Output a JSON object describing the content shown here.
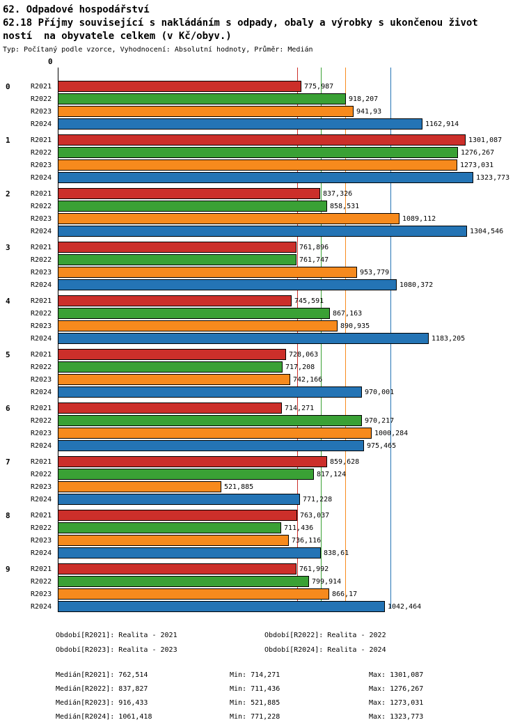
{
  "header": {
    "title": "62. Odpadové hospodářství",
    "subtitle_line1": "62.18 Příjmy související s nakládáním s odpady, obaly a výrobky s ukončenou život",
    "subtitle_line2": "ností  na obyvatele celkem (v Kč/obyv.)",
    "meta": "Typ: Počítaný podle vzorce, Vyhodnocení: Absolutní hodnoty, Průměr: Medián"
  },
  "chart_data": {
    "type": "bar",
    "orientation": "horizontal",
    "title": "62.18 Příjmy související s nakládáním s odpady, obaly a výrobky s ukončenou životností na obyvatele celkem (v Kč/obyv.)",
    "axis_zero_label": "0",
    "xlim": [
      0,
      1480
    ],
    "grid": false,
    "categories": [
      "0",
      "1",
      "2",
      "3",
      "4",
      "5",
      "6",
      "7",
      "8",
      "9"
    ],
    "series": [
      {
        "name": "R2021",
        "color": "#cc2f2a",
        "values": [
          775.987,
          1301.087,
          837.326,
          761.896,
          745.591,
          728.063,
          714.271,
          859.628,
          763.037,
          761.992
        ],
        "labels": [
          "775,987",
          "1301,087",
          "837,326",
          "761,896",
          "745,591",
          "728,063",
          "714,271",
          "859,628",
          "763,037",
          "761,992"
        ],
        "median": 762.514
      },
      {
        "name": "R2022",
        "color": "#3aa135",
        "values": [
          918.207,
          1276.267,
          858.531,
          761.747,
          867.163,
          717.208,
          970.217,
          817.124,
          711.436,
          799.914
        ],
        "labels": [
          "918,207",
          "1276,267",
          "858,531",
          "761,747",
          "867,163",
          "717,208",
          "970,217",
          "817,124",
          "711,436",
          "799,914"
        ],
        "median": 837.827
      },
      {
        "name": "R2023",
        "color": "#f78a1d",
        "values": [
          941.93,
          1273.031,
          1089.112,
          953.779,
          890.935,
          742.166,
          1000.284,
          521.885,
          736.116,
          866.17
        ],
        "labels": [
          "941,93",
          "1273,031",
          "1089,112",
          "953,779",
          "890,935",
          "742,166",
          "1000,284",
          "521,885",
          "736,116",
          "866,17"
        ],
        "median": 916.433
      },
      {
        "name": "R2024",
        "color": "#2474b5",
        "values": [
          1162.914,
          1323.773,
          1304.546,
          1080.372,
          1183.205,
          970.001,
          975.465,
          771.228,
          838.61,
          1042.464
        ],
        "labels": [
          "1162,914",
          "1323,773",
          "1304,546",
          "1080,372",
          "1183,205",
          "970,001",
          "975,465",
          "771,228",
          "838,61",
          "1042,464"
        ],
        "median": 1061.418
      }
    ]
  },
  "legend": {
    "items": [
      {
        "label": "Období[R2021]: Realita - 2021"
      },
      {
        "label": "Období[R2022]: Realita - 2022"
      },
      {
        "label": "Období[R2023]: Realita - 2023"
      },
      {
        "label": "Období[R2024]: Realita - 2024"
      }
    ]
  },
  "stats": {
    "rows": [
      {
        "median": "Medián[R2021]: 762,514",
        "min": "Min: 714,271",
        "max": "Max: 1301,087"
      },
      {
        "median": "Medián[R2022]: 837,827",
        "min": "Min: 711,436",
        "max": "Max: 1276,267"
      },
      {
        "median": "Medián[R2023]: 916,433",
        "min": "Min: 521,885",
        "max": "Max: 1273,031"
      },
      {
        "median": "Medián[R2024]: 1061,418",
        "min": "Min: 771,228",
        "max": "Max: 1323,773"
      }
    ]
  }
}
